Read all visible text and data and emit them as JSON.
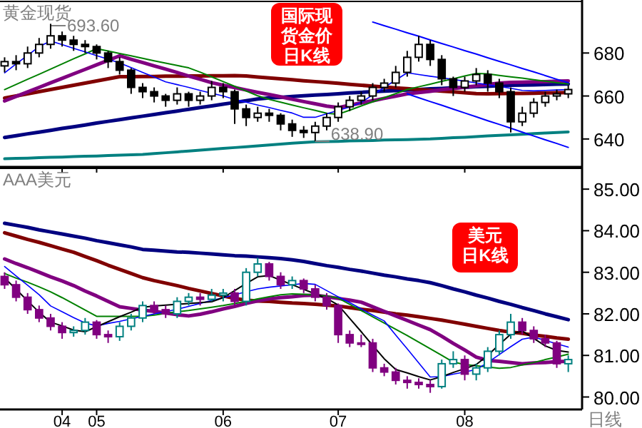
{
  "chart_data": [
    {
      "type": "candlestick",
      "title": "黄金现货",
      "tick_labels": "y",
      "ylim": [
        627,
        704
      ],
      "yticks": [
        640,
        660,
        680
      ],
      "categories": [
        null,
        null,
        null,
        null,
        null,
        "04",
        null,
        null,
        "05",
        null,
        null,
        null,
        null,
        null,
        null,
        null,
        null,
        null,
        null,
        "06",
        null,
        null,
        null,
        null,
        null,
        null,
        null,
        null,
        null,
        "07",
        null,
        null,
        null,
        null,
        null,
        null,
        null,
        null,
        null,
        null,
        "08",
        null,
        null,
        null,
        null,
        null,
        null,
        null,
        null,
        null
      ],
      "ohlc": [
        [
          674,
          678,
          671,
          676
        ],
        [
          676,
          679,
          672,
          675
        ],
        [
          675,
          683,
          673,
          680
        ],
        [
          680,
          687,
          678,
          684
        ],
        [
          684,
          693.6,
          682,
          688
        ],
        [
          688,
          690,
          683,
          686
        ],
        [
          686,
          688,
          681,
          684
        ],
        [
          684,
          686,
          680,
          683
        ],
        [
          683,
          684,
          677,
          680
        ],
        [
          680,
          681,
          673,
          676
        ],
        [
          676,
          678,
          670,
          672
        ],
        [
          672,
          673,
          661,
          664
        ],
        [
          664,
          666,
          659,
          662
        ],
        [
          662,
          664,
          657,
          660
        ],
        [
          660,
          661,
          655,
          658
        ],
        [
          658,
          664,
          656,
          661
        ],
        [
          661,
          662,
          655,
          658
        ],
        [
          658,
          662,
          656,
          660
        ],
        [
          660,
          667,
          658,
          664
        ],
        [
          664,
          666,
          659,
          662
        ],
        [
          662,
          663,
          647,
          654
        ],
        [
          654,
          656,
          646,
          650
        ],
        [
          650,
          655,
          648,
          652
        ],
        [
          652,
          654,
          648,
          651
        ],
        [
          651,
          652,
          644,
          647
        ],
        [
          647,
          649,
          641,
          644
        ],
        [
          644,
          646,
          640.5,
          643
        ],
        [
          643,
          648,
          638.9,
          646
        ],
        [
          646,
          652,
          644,
          650
        ],
        [
          650,
          657,
          648,
          655
        ],
        [
          655,
          660,
          653,
          658
        ],
        [
          658,
          662,
          656,
          660
        ],
        [
          660,
          666,
          658,
          664
        ],
        [
          664,
          668,
          662,
          666
        ],
        [
          666,
          674,
          664,
          671
        ],
        [
          671,
          681,
          669,
          678
        ],
        [
          678,
          688,
          676,
          684
        ],
        [
          684,
          686,
          674,
          677
        ],
        [
          677,
          679,
          665,
          668
        ],
        [
          668,
          669,
          660,
          664
        ],
        [
          664,
          669,
          662,
          667
        ],
        [
          667,
          673,
          665,
          670
        ],
        [
          670,
          672,
          662,
          666
        ],
        [
          666,
          668,
          659,
          662
        ],
        [
          662,
          664,
          643,
          648
        ],
        [
          648,
          655,
          646,
          652
        ],
        [
          652,
          659,
          650,
          657
        ],
        [
          657,
          662,
          655,
          660
        ],
        [
          660,
          663,
          658,
          661
        ],
        [
          661,
          665,
          659,
          663
        ]
      ],
      "colors": [
        "#000000",
        "#000000",
        "#000000",
        "#000000",
        "#000000",
        "#000000",
        "#000000",
        "#000000",
        "#000000",
        "#000000",
        "#000000",
        "#000000",
        "#000000",
        "#000000",
        "#000000",
        "#000000",
        "#000000",
        "#000000",
        "#000000",
        "#000000",
        "#000000",
        "#000000",
        "#000000",
        "#000000",
        "#000000",
        "#000000",
        "#000000",
        "#000000",
        "#000000",
        "#000000",
        "#000000",
        "#000000",
        "#000000",
        "#000000",
        "#000000",
        "#000000",
        "#000000",
        "#000000",
        "#000000",
        "#000000",
        "#000000",
        "#000000",
        "#000000",
        "#000000",
        "#000000",
        "#000000",
        "#000000",
        "#000000",
        "#000000",
        "#000000"
      ],
      "series": [
        {
          "type": "line",
          "color": "#008080",
          "values": [
            630.8,
            631.0,
            631.1,
            631.3,
            631.5,
            631.6,
            631.8,
            632.0,
            632.1,
            632.3,
            632.5,
            632.6,
            632.8,
            633.2,
            633.6,
            634.0,
            634.4,
            634.8,
            635.2,
            635.6,
            636.0,
            636.4,
            636.8,
            637.2,
            637.6,
            638.0,
            638.4,
            638.7,
            638.8,
            638.9,
            639.1,
            639.2,
            639.3,
            639.5,
            639.6,
            639.7,
            639.9,
            640.0,
            640.3,
            640.6,
            640.8,
            641.1,
            641.4,
            641.7,
            641.9,
            642.2,
            642.5,
            642.8,
            643.0,
            643.3
          ]
        },
        {
          "type": "line",
          "color": "#000080",
          "values": [
            640.7,
            641.5,
            642.4,
            643.2,
            644.0,
            644.9,
            645.7,
            646.5,
            647.4,
            648.2,
            649.0,
            649.8,
            650.6,
            651.4,
            652.2,
            653.0,
            653.8,
            654.6,
            655.4,
            656.2,
            657.0,
            657.8,
            658.6,
            659.1,
            659.4,
            659.8,
            660.1,
            660.4,
            660.7,
            661.0,
            661.4,
            661.7,
            662.0,
            662.3,
            662.5,
            662.8,
            663.0,
            663.3,
            663.5,
            663.8,
            664.0,
            664.3,
            664.5,
            664.8,
            665.0,
            665.1,
            665.2,
            665.3,
            665.5,
            665.6
          ]
        },
        {
          "type": "line",
          "color": "#800000",
          "values": [
            659,
            660,
            661,
            662,
            663,
            664,
            665,
            666,
            667,
            668,
            669,
            669.0,
            669.1,
            669.1,
            669.2,
            669.2,
            669.3,
            669.3,
            669.4,
            669.4,
            669.5,
            669.3,
            668.8,
            668.4,
            668.0,
            667.6,
            667.1,
            666.7,
            666.3,
            665.9,
            665.4,
            665.0,
            664.6,
            664.2,
            663.8,
            663.4,
            663.0,
            662.7,
            662.3,
            661.9,
            661.5,
            661.1,
            661.0,
            661.1,
            661.2,
            661.2,
            661.3,
            661.4,
            661.5,
            661.6
          ]
        },
        {
          "type": "line",
          "color": "#800080",
          "values": [
            657.7,
            659.8,
            661.9,
            664.0,
            666.1,
            668.2,
            670.3,
            672.4,
            674.5,
            676.6,
            678.7,
            677.1,
            675.6,
            674.0,
            672.5,
            670.9,
            669.3,
            667.8,
            666.2,
            665.0,
            663.9,
            662.8,
            661.7,
            660.7,
            659.6,
            658.5,
            657.4,
            656.4,
            655.3,
            654.6,
            655.7,
            656.8,
            657.8,
            658.9,
            659.9,
            661.0,
            661.6,
            662.2,
            662.9,
            663.5,
            664.1,
            664.7,
            665.3,
            666.0,
            666.3,
            666.4,
            666.6,
            666.7,
            666.9,
            667.0
          ]
        },
        {
          "type": "line",
          "color": "#008000",
          "values": [
            663,
            665.4,
            667.8,
            670.1,
            672.5,
            674.9,
            677.3,
            679.6,
            682,
            680.9,
            679.8,
            678.7,
            677.5,
            676.4,
            675.3,
            674.2,
            673.1,
            671.1,
            668.9,
            666.7,
            664.5,
            662.3,
            660.1,
            658.4,
            657.1,
            655.8,
            654.5,
            653.3,
            652.0,
            651.5,
            653.4,
            655.4,
            657.3,
            659.2,
            661.1,
            663.0,
            664.3,
            665.5,
            666.8,
            668.0,
            669.3,
            670.5,
            670.3,
            669.6,
            668.9,
            668.3,
            667.6,
            666.9,
            666.2,
            665.6
          ]
        },
        {
          "type": "line",
          "color": "#0000ff",
          "values": [
            670.8,
            674.9,
            678.9,
            683.0,
            685.6,
            683.9,
            682.2,
            680.5,
            678.8,
            677.1,
            675.4,
            673.2,
            671.0,
            668.8,
            666.6,
            665.3,
            664.0,
            662.6,
            661.3,
            660.0,
            658.4,
            657.1,
            655.8,
            654.6,
            653.3,
            652.1,
            650.1,
            650.1,
            651.7,
            653.3,
            654.9,
            657.0,
            660.5,
            664.0,
            667.4,
            670.8,
            670.0,
            669.2,
            668.5,
            667.7,
            666.9,
            666.1,
            665.2,
            664.4,
            663.6,
            662.6,
            662.4,
            662.6,
            662.8,
            663.0
          ]
        },
        {
          "type": "line",
          "color": "#0000ff",
          "values": [
            null,
            null,
            null,
            null,
            null,
            null,
            null,
            null,
            null,
            null,
            null,
            null,
            null,
            null,
            null,
            null,
            null,
            null,
            null,
            null,
            null,
            null,
            null,
            null,
            null,
            null,
            null,
            null,
            null,
            null,
            null,
            null,
            694.4,
            692.7,
            691.1,
            689.4,
            687.8,
            686.1,
            684.4,
            682.8,
            681.1,
            679.5,
            677.8,
            676.1,
            674.5,
            672.8,
            671.2,
            669.5,
            667.8,
            666.2
          ]
        },
        {
          "type": "line",
          "color": "#0000ff",
          "values": [
            null,
            null,
            null,
            null,
            null,
            null,
            null,
            null,
            null,
            null,
            null,
            null,
            null,
            null,
            null,
            null,
            null,
            null,
            null,
            null,
            null,
            null,
            null,
            null,
            null,
            null,
            null,
            null,
            null,
            null,
            null,
            null,
            null,
            null,
            null,
            661,
            659.2,
            657.4,
            655.7,
            653.9,
            652.1,
            650.3,
            648.5,
            646.8,
            645.0,
            643.2,
            641.4,
            639.6,
            637.9,
            636.1
          ]
        }
      ],
      "annotations": [
        "693.60",
        {
          "text": "638.90",
          "y": 638.9
        },
        "国际现货金价日K线"
      ]
    },
    {
      "type": "candlestick",
      "title": "AAA美元",
      "xlabel": "日线",
      "ylim": [
        79.7,
        85.5
      ],
      "yticks": [
        {
          "value": 80,
          "label": "80.00"
        },
        {
          "value": 81,
          "label": "81.00"
        },
        {
          "value": 82,
          "label": "82.00"
        },
        {
          "value": 83,
          "label": "83.00"
        },
        {
          "value": 84,
          "label": "84.00"
        },
        {
          "value": 85,
          "label": "85.00"
        }
      ],
      "categories": [
        null,
        null,
        null,
        null,
        null,
        "04",
        null,
        null,
        "05",
        null,
        null,
        null,
        null,
        null,
        null,
        null,
        null,
        null,
        null,
        "06",
        null,
        null,
        null,
        null,
        null,
        null,
        null,
        null,
        null,
        "07",
        null,
        null,
        null,
        null,
        null,
        null,
        null,
        null,
        null,
        null,
        "08",
        null,
        null,
        null,
        null,
        null,
        null,
        null,
        null,
        null
      ],
      "ohlc": [
        [
          82.9,
          83.0,
          82.6,
          82.7
        ],
        [
          82.7,
          82.8,
          82.3,
          82.4
        ],
        [
          82.4,
          82.5,
          82.0,
          82.1
        ],
        [
          82.1,
          82.2,
          81.8,
          81.9
        ],
        [
          81.9,
          82.0,
          81.6,
          81.7
        ],
        [
          81.7,
          81.8,
          81.4,
          81.55
        ],
        [
          81.55,
          81.7,
          81.45,
          81.6
        ],
        [
          81.6,
          81.9,
          81.5,
          81.8
        ],
        [
          81.8,
          81.85,
          81.4,
          81.5
        ],
        [
          81.5,
          81.6,
          81.3,
          81.45
        ],
        [
          81.45,
          81.8,
          81.35,
          81.7
        ],
        [
          81.7,
          82.0,
          81.6,
          81.9
        ],
        [
          81.9,
          82.3,
          81.8,
          82.2
        ],
        [
          82.2,
          82.3,
          82.0,
          82.1
        ],
        [
          82.1,
          82.2,
          81.9,
          82.0
        ],
        [
          82.0,
          82.4,
          81.9,
          82.3
        ],
        [
          82.3,
          82.5,
          82.2,
          82.4
        ],
        [
          82.4,
          82.5,
          82.2,
          82.35
        ],
        [
          82.35,
          82.6,
          82.3,
          82.45
        ],
        [
          82.45,
          82.6,
          82.3,
          82.5
        ],
        [
          82.5,
          82.6,
          82.2,
          82.3
        ],
        [
          82.3,
          83.1,
          82.2,
          83.0
        ],
        [
          83.0,
          83.35,
          82.9,
          83.2
        ],
        [
          83.2,
          83.25,
          82.8,
          82.9
        ],
        [
          82.9,
          83.0,
          82.6,
          82.7
        ],
        [
          82.7,
          82.9,
          82.6,
          82.8
        ],
        [
          82.8,
          82.85,
          82.5,
          82.6
        ],
        [
          82.6,
          82.7,
          82.3,
          82.4
        ],
        [
          82.4,
          82.5,
          82.1,
          82.2
        ],
        [
          82.2,
          82.25,
          81.3,
          81.5
        ],
        [
          81.5,
          81.6,
          81.2,
          81.3
        ],
        [
          81.3,
          81.5,
          81.2,
          81.3
        ],
        [
          81.3,
          81.4,
          80.6,
          80.7
        ],
        [
          80.7,
          80.8,
          80.5,
          80.6
        ],
        [
          80.6,
          80.7,
          80.3,
          80.4
        ],
        [
          80.4,
          80.5,
          80.2,
          80.35
        ],
        [
          80.35,
          80.45,
          80.2,
          80.3
        ],
        [
          80.3,
          80.4,
          80.1,
          80.25
        ],
        [
          80.25,
          80.9,
          80.2,
          80.8
        ],
        [
          80.8,
          81.1,
          80.7,
          80.9
        ],
        [
          80.9,
          81.0,
          80.4,
          80.55
        ],
        [
          80.55,
          80.8,
          80.4,
          80.7
        ],
        [
          80.7,
          81.2,
          80.6,
          81.1
        ],
        [
          81.1,
          81.6,
          81.0,
          81.5
        ],
        [
          81.5,
          82.0,
          81.4,
          81.8
        ],
        [
          81.8,
          81.9,
          81.5,
          81.6
        ],
        [
          81.6,
          81.7,
          81.3,
          81.4
        ],
        [
          81.4,
          81.5,
          81.2,
          81.3
        ],
        [
          81.3,
          81.35,
          80.7,
          80.8
        ],
        [
          80.8,
          81.0,
          80.6,
          80.9
        ]
      ],
      "colors": [
        "#800080",
        "#800080",
        "#800080",
        "#800080",
        "#800080",
        "#800080",
        "#008080",
        "#008080",
        "#800080",
        "#800080",
        "#008080",
        "#008080",
        "#008080",
        "#800080",
        "#800080",
        "#008080",
        "#008080",
        "#800080",
        "#008080",
        "#008080",
        "#800080",
        "#008080",
        "#008080",
        "#800080",
        "#800080",
        "#008080",
        "#800080",
        "#800080",
        "#800080",
        "#800080",
        "#800080",
        "#800080",
        "#800080",
        "#800080",
        "#800080",
        "#800080",
        "#800080",
        "#800080",
        "#008080",
        "#008080",
        "#800080",
        "#008080",
        "#008080",
        "#008080",
        "#008080",
        "#800080",
        "#800080",
        "#800080",
        "#800080",
        "#008080"
      ],
      "series": [
        {
          "type": "line",
          "color": "#000080",
          "values": [
            84.18,
            84.13,
            84.08,
            84.02,
            83.97,
            83.92,
            83.87,
            83.82,
            83.76,
            83.71,
            83.66,
            83.61,
            83.55,
            83.53,
            83.51,
            83.49,
            83.48,
            83.46,
            83.44,
            83.42,
            83.4,
            83.39,
            83.37,
            83.35,
            83.33,
            83.3,
            83.26,
            83.21,
            83.16,
            83.12,
            83.07,
            83.03,
            82.98,
            82.93,
            82.89,
            82.84,
            82.8,
            82.75,
            82.68,
            82.6,
            82.53,
            82.45,
            82.38,
            82.3,
            82.23,
            82.15,
            82.08,
            82.0,
            81.93,
            81.86
          ]
        },
        {
          "type": "line",
          "color": "#800000",
          "values": [
            83.95,
            83.87,
            83.79,
            83.72,
            83.64,
            83.56,
            83.48,
            83.38,
            83.28,
            83.17,
            83.07,
            82.97,
            82.87,
            82.8,
            82.74,
            82.68,
            82.61,
            82.55,
            82.49,
            82.43,
            82.37,
            82.33,
            82.31,
            82.3,
            82.28,
            82.26,
            82.25,
            82.23,
            82.21,
            82.19,
            82.15,
            82.11,
            82.08,
            82.04,
            82.0,
            81.97,
            81.93,
            81.89,
            81.85,
            81.8,
            81.75,
            81.7,
            81.65,
            81.6,
            81.56,
            81.53,
            81.49,
            81.46,
            81.42,
            81.39
          ]
        },
        {
          "type": "line",
          "color": "#800080",
          "values": [
            83.32,
            83.21,
            83.11,
            83.0,
            82.89,
            82.79,
            82.68,
            82.55,
            82.43,
            82.3,
            82.17,
            82.13,
            82.09,
            82.06,
            82.02,
            81.98,
            81.95,
            81.99,
            82.05,
            82.12,
            82.18,
            82.25,
            82.31,
            82.36,
            82.39,
            82.41,
            82.44,
            82.45,
            82.41,
            82.37,
            82.33,
            82.28,
            82.17,
            82.06,
            81.95,
            81.84,
            81.73,
            81.62,
            81.46,
            81.29,
            81.13,
            80.96,
            80.88,
            80.86,
            80.83,
            80.8,
            80.82,
            80.83,
            80.85,
            80.86
          ]
        },
        {
          "type": "line",
          "color": "#008000",
          "values": [
            82.97,
            82.86,
            82.76,
            82.65,
            82.53,
            82.39,
            82.24,
            82.09,
            81.94,
            81.94,
            81.94,
            81.94,
            81.94,
            81.97,
            82.01,
            82.05,
            82.08,
            82.12,
            82.16,
            82.2,
            82.25,
            82.3,
            82.36,
            82.41,
            82.46,
            82.48,
            82.47,
            82.45,
            82.43,
            82.38,
            82.23,
            82.08,
            81.93,
            81.78,
            81.63,
            81.48,
            81.32,
            81.16,
            81.0,
            80.84,
            80.78,
            80.75,
            80.72,
            80.69,
            80.71,
            80.77,
            80.83,
            80.9,
            80.96,
            81.03
          ]
        },
        {
          "type": "line",
          "color": "#0000ff",
          "values": [
            83.14,
            82.91,
            82.69,
            82.46,
            82.19,
            82.05,
            81.91,
            81.78,
            81.71,
            81.77,
            81.82,
            81.88,
            81.94,
            82.0,
            82.05,
            82.11,
            82.18,
            82.25,
            82.32,
            82.39,
            82.46,
            82.53,
            82.6,
            82.64,
            82.67,
            82.7,
            82.73,
            82.71,
            82.56,
            82.41,
            82.27,
            82.12,
            81.97,
            81.83,
            81.49,
            81.16,
            80.82,
            80.48,
            80.49,
            80.55,
            80.6,
            80.66,
            80.83,
            81.02,
            81.21,
            81.39,
            81.44,
            81.36,
            81.28,
            81.2
          ]
        },
        {
          "type": "line",
          "color": "#000000",
          "values": [
            82.86,
            82.59,
            82.31,
            82.04,
            81.8,
            81.71,
            81.61,
            81.57,
            81.69,
            81.81,
            81.93,
            82.04,
            82.16,
            82.19,
            82.21,
            82.23,
            82.25,
            82.27,
            82.29,
            82.39,
            82.56,
            82.73,
            82.89,
            82.92,
            82.81,
            82.7,
            82.59,
            82.48,
            82.37,
            82.21,
            81.89,
            81.57,
            81.24,
            80.92,
            80.66,
            80.58,
            80.49,
            80.41,
            80.49,
            80.59,
            80.68,
            80.78,
            81.0,
            81.26,
            81.51,
            81.59,
            81.41,
            81.23,
            81.12,
            81.08
          ]
        }
      ],
      "annotations": [
        "美元日K线"
      ]
    }
  ]
}
